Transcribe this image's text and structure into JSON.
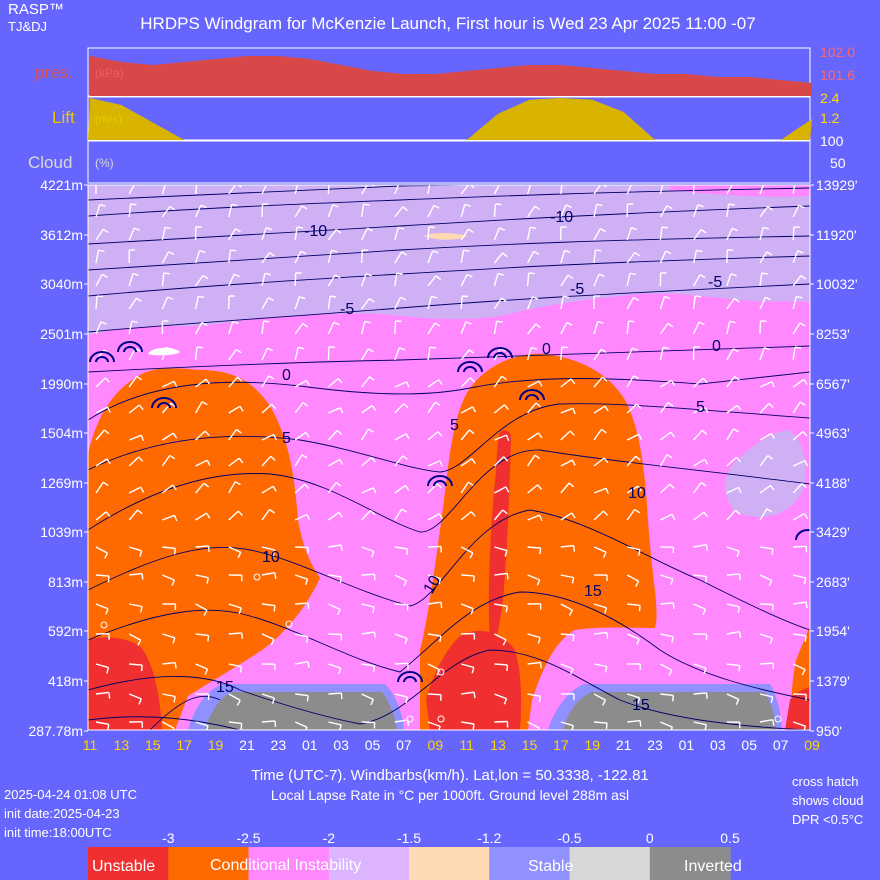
{
  "header": {
    "brand": "RASP™",
    "author": "TJ&DJ",
    "title": "HRDPS Windgram for McKenzie Launch, First hour is Wed 23 Apr 2025 11:00 -07"
  },
  "panels": {
    "pressure": {
      "label": "pres.",
      "unit": "(kPa)",
      "ticks": [
        "102.0",
        "101.6"
      ]
    },
    "lift": {
      "label": "Lift",
      "unit": "(m/s)",
      "ticks": [
        "2.4",
        "1.2"
      ]
    },
    "cloud": {
      "label": "Cloud",
      "unit": "(%)",
      "ticks": [
        "100",
        "50"
      ]
    }
  },
  "footer": {
    "axis_title": "Time (UTC-7). Windbarbs(km/h). Lat,lon = 50.3338, -122.81",
    "subtitle": "Local Lapse Rate in °C per 1000ft.   Ground level 288m asl",
    "run_time": "2025-04-24 01:08 UTC",
    "init_date": "init date:2025-04-23",
    "init_time": "init time:18:00UTC",
    "note_line1": "cross hatch",
    "note_line2": "shows cloud",
    "note_line3": "DPR <0.5°C"
  },
  "legend": {
    "values": [
      "-3",
      "-2.5",
      "-2",
      "-1.5",
      "-1.2",
      "-0.5",
      "0",
      "0.5"
    ],
    "labels": {
      "unstable": "Unstable",
      "conditional": "Conditional Instability",
      "stable": "Stable",
      "inverted": "Inverted"
    },
    "colors": [
      "#f03030",
      "#ff6a00",
      "#ff88ff",
      "#dcb4ff",
      "#ffd8b4",
      "#9090ff",
      "#d8d8d8",
      "#8c8c8c"
    ]
  },
  "colors": {
    "background": "#6666ff",
    "pressure_fill": "#d84848",
    "lift_fill": "#d8b400",
    "contour": "#000066",
    "stable_lilac": "#cfb0f5",
    "pink": "#ff88ff",
    "orange": "#ff6a00",
    "red": "#f03030",
    "grey": "#8c8c8c"
  },
  "chart_data": {
    "type": "heatmap",
    "x_label": "Time (UTC-7). Windbarbs(km/h). Lat,lon = 50.3338, -122.81",
    "x_ticks": [
      "11",
      "13",
      "15",
      "17",
      "19",
      "21",
      "23",
      "01",
      "03",
      "05",
      "07",
      "09",
      "11",
      "13",
      "15",
      "17",
      "19",
      "21",
      "23",
      "01",
      "03",
      "05",
      "07",
      "09"
    ],
    "x_ticks_daytime": [
      true,
      true,
      true,
      true,
      true,
      false,
      false,
      false,
      false,
      false,
      false,
      true,
      true,
      true,
      true,
      true,
      true,
      false,
      false,
      false,
      false,
      false,
      false,
      true
    ],
    "y_left_ticks": [
      "4221m",
      "3612m",
      "3040m",
      "2501m",
      "1990m",
      "1504m",
      "1269m",
      "1039m",
      "813m",
      "592m",
      "418m",
      "287.78m"
    ],
    "y_right_ticks": [
      "13929'",
      "11920'",
      "10032'",
      "8253'",
      "6567'",
      "4963'",
      "4188'",
      "3429'",
      "2683'",
      "1954'",
      "1379'",
      "950'"
    ],
    "contour_labels": [
      "-10",
      "-10",
      "-5",
      "-5",
      "-5",
      "0",
      "0",
      "0",
      "5",
      "5",
      "5",
      "10",
      "10",
      "10",
      "15",
      "15",
      "15"
    ],
    "pressure_kpa": [
      101.9,
      101.8,
      101.75,
      101.8,
      101.85,
      101.9,
      101.9,
      101.85,
      101.75,
      101.65,
      101.6,
      101.6,
      101.65,
      101.7,
      101.75,
      101.75,
      101.7,
      101.65,
      101.6,
      101.6,
      101.55,
      101.55,
      101.5,
      101.45
    ],
    "lift_ms": [
      2.4,
      2.0,
      1.0,
      0,
      0,
      0,
      0,
      0,
      0,
      0,
      0,
      0,
      0,
      1.5,
      2.3,
      2.4,
      2.3,
      1.6,
      0,
      0,
      0,
      0,
      0,
      1.2
    ],
    "cloud_pct": [
      0,
      0,
      0,
      0,
      0,
      0,
      0,
      0,
      0,
      0,
      0,
      0,
      0,
      0,
      0,
      0,
      0,
      0,
      0,
      0,
      0,
      0,
      0,
      0
    ]
  }
}
